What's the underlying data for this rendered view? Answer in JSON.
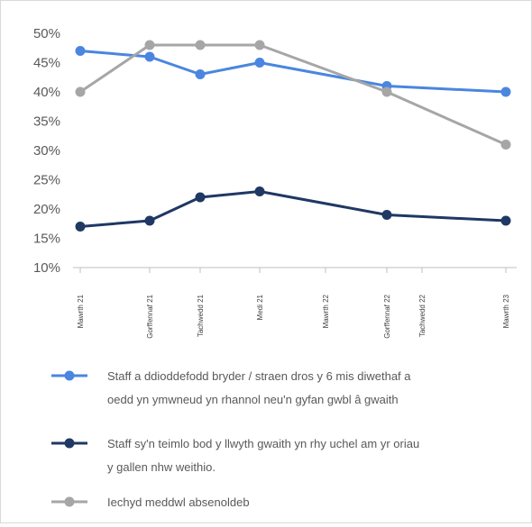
{
  "chart_data": {
    "type": "line",
    "title": "",
    "xlabel": "",
    "ylabel": "",
    "x_ticks": [
      "Mawrth 21",
      "Gorffennaf 21",
      "Tachwedd 21",
      "Medi 21",
      "Mawrth 22",
      "Gorffennaf 22",
      "Tachwedd 22",
      "Mawrth 23"
    ],
    "y_ticks": [
      "10%",
      "15%",
      "20%",
      "25%",
      "30%",
      "35%",
      "40%",
      "45%",
      "50%"
    ],
    "ylim": [
      10,
      50
    ],
    "grid": false,
    "legend_position": "bottom",
    "series": [
      {
        "name": "Staff a ddioddefodd bryder / straen dros y 6 mis diwethaf a oedd yn ymwneud yn rhannol neu'n gyfan gwbl â gwaith",
        "color": "#4a86e0",
        "points": [
          {
            "x": "Mawrth 21",
            "y": 47
          },
          {
            "x": "Gorffennaf 21",
            "y": 46
          },
          {
            "x": "Tachwedd 21",
            "y": 43
          },
          {
            "x": "Medi 21",
            "y": 45
          },
          {
            "x": "Gorffennaf 22",
            "y": 41
          },
          {
            "x": "Mawrth 23",
            "y": 40
          }
        ]
      },
      {
        "name": "Staff sy'n teimlo bod y llwyth gwaith yn rhy uchel am yr oriau y gallen nhw weithio.",
        "color": "#1f3864",
        "points": [
          {
            "x": "Mawrth 21",
            "y": 17
          },
          {
            "x": "Gorffennaf 21",
            "y": 18
          },
          {
            "x": "Tachwedd 21",
            "y": 22
          },
          {
            "x": "Medi 21",
            "y": 23
          },
          {
            "x": "Gorffennaf 22",
            "y": 19
          },
          {
            "x": "Mawrth 23",
            "y": 18
          }
        ]
      },
      {
        "name": "Iechyd meddwl absenoldeb",
        "color": "#a6a6a6",
        "points": [
          {
            "x": "Mawrth 21",
            "y": 40
          },
          {
            "x": "Gorffennaf 21",
            "y": 48
          },
          {
            "x": "Tachwedd 21",
            "y": 48
          },
          {
            "x": "Medi 21",
            "y": 48
          },
          {
            "x": "Gorffennaf 22",
            "y": 40
          },
          {
            "x": "Mawrth 23",
            "y": 31
          }
        ]
      }
    ]
  }
}
